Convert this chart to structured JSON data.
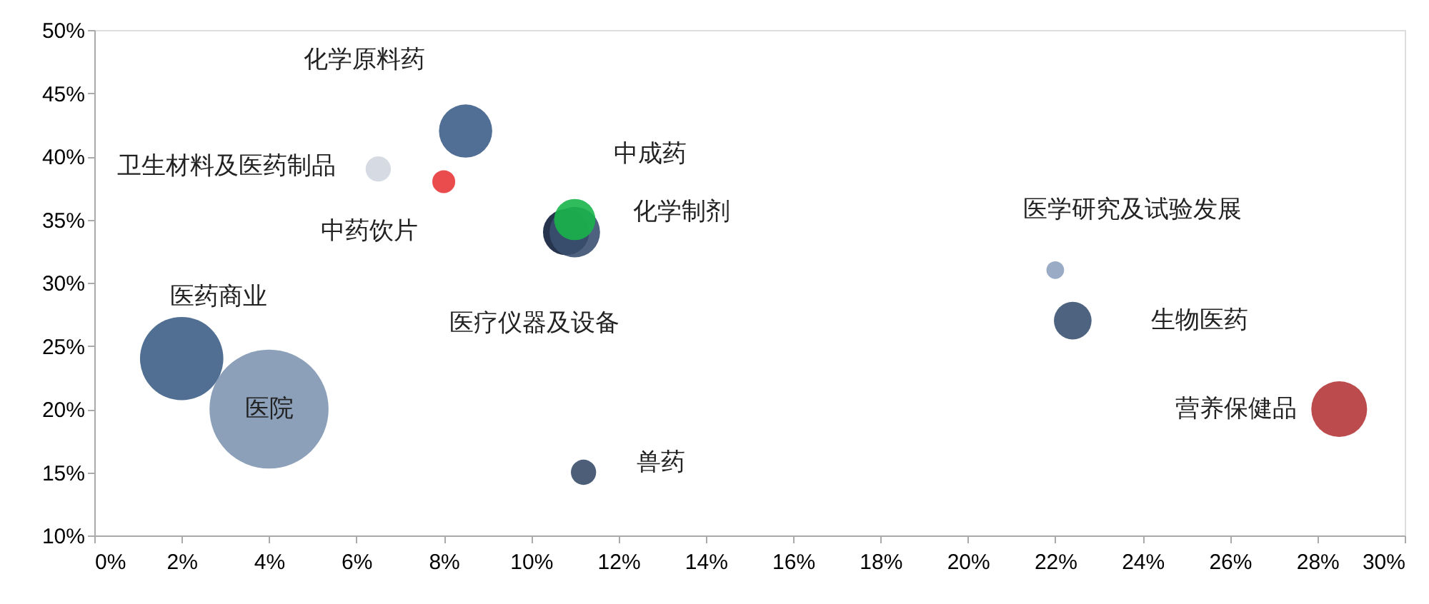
{
  "chart_data": {
    "type": "bubble",
    "grid": false,
    "xlim": [
      0,
      30
    ],
    "ylim": [
      10,
      50
    ],
    "xticks": [
      {
        "value": 0,
        "label": "0%"
      },
      {
        "value": 2,
        "label": "2%"
      },
      {
        "value": 4,
        "label": "4%"
      },
      {
        "value": 6,
        "label": "6%"
      },
      {
        "value": 8,
        "label": "8%"
      },
      {
        "value": 10,
        "label": "10%"
      },
      {
        "value": 12,
        "label": "12%"
      },
      {
        "value": 14,
        "label": "14%"
      },
      {
        "value": 16,
        "label": "16%"
      },
      {
        "value": 18,
        "label": "18%"
      },
      {
        "value": 20,
        "label": "20%"
      },
      {
        "value": 22,
        "label": "22%"
      },
      {
        "value": 24,
        "label": "24%"
      },
      {
        "value": 26,
        "label": "26%"
      },
      {
        "value": 28,
        "label": "28%"
      },
      {
        "value": 30,
        "label": "30%"
      }
    ],
    "yticks": [
      {
        "value": 10,
        "label": "10%"
      },
      {
        "value": 15,
        "label": "15%"
      },
      {
        "value": 20,
        "label": "20%"
      },
      {
        "value": 25,
        "label": "25%"
      },
      {
        "value": 30,
        "label": "30%"
      },
      {
        "value": 35,
        "label": "35%"
      },
      {
        "value": 40,
        "label": "40%"
      },
      {
        "value": 45,
        "label": "45%"
      },
      {
        "value": 50,
        "label": "50%"
      }
    ],
    "series": [
      {
        "name": "医药商业",
        "color": "#3d5f87",
        "x": [
          2
        ],
        "values": [
          24
        ],
        "sizes": [
          0.49
        ]
      },
      {
        "name": "医院",
        "color": "#8096b1",
        "x": [
          4
        ],
        "values": [
          20
        ],
        "sizes": [
          1
        ]
      },
      {
        "name": "卫生材料及医药制品",
        "color": "#d0d6e0",
        "x": [
          6.5
        ],
        "values": [
          39
        ],
        "sizes": [
          0.045
        ]
      },
      {
        "name": "中药饮片",
        "color": "#e8393a",
        "x": [
          8
        ],
        "values": [
          38
        ],
        "sizes": [
          0.037
        ]
      },
      {
        "name": "化学原料药",
        "color": "#3e5f88",
        "x": [
          8.5
        ],
        "values": [
          42
        ],
        "sizes": [
          0.2
        ]
      },
      {
        "name": "医疗仪器及设备",
        "color": "#0e1f3a",
        "x": [
          10.8
        ],
        "values": [
          34
        ],
        "sizes": [
          0.15
        ]
      },
      {
        "name": "化学制剂",
        "color": "#3b5070",
        "x": [
          11
        ],
        "values": [
          34
        ],
        "sizes": [
          0.18
        ]
      },
      {
        "name": "中成药",
        "color": "#19b44a",
        "x": [
          11
        ],
        "values": [
          35
        ],
        "sizes": [
          0.12
        ]
      },
      {
        "name": "兽药",
        "color": "#3a4d6a",
        "x": [
          11.2
        ],
        "values": [
          15
        ],
        "sizes": [
          0.045
        ]
      },
      {
        "name": "医学研究及试验发展",
        "color": "#8ea2bf",
        "x": [
          22
        ],
        "values": [
          31
        ],
        "sizes": [
          0.022
        ]
      },
      {
        "name": "生物医药",
        "color": "#3a5272",
        "x": [
          22.4
        ],
        "values": [
          27
        ],
        "sizes": [
          0.1
        ]
      },
      {
        "name": "营养保健品",
        "color": "#b5373a",
        "x": [
          28.5
        ],
        "values": [
          20
        ],
        "sizes": [
          0.22
        ]
      }
    ]
  }
}
